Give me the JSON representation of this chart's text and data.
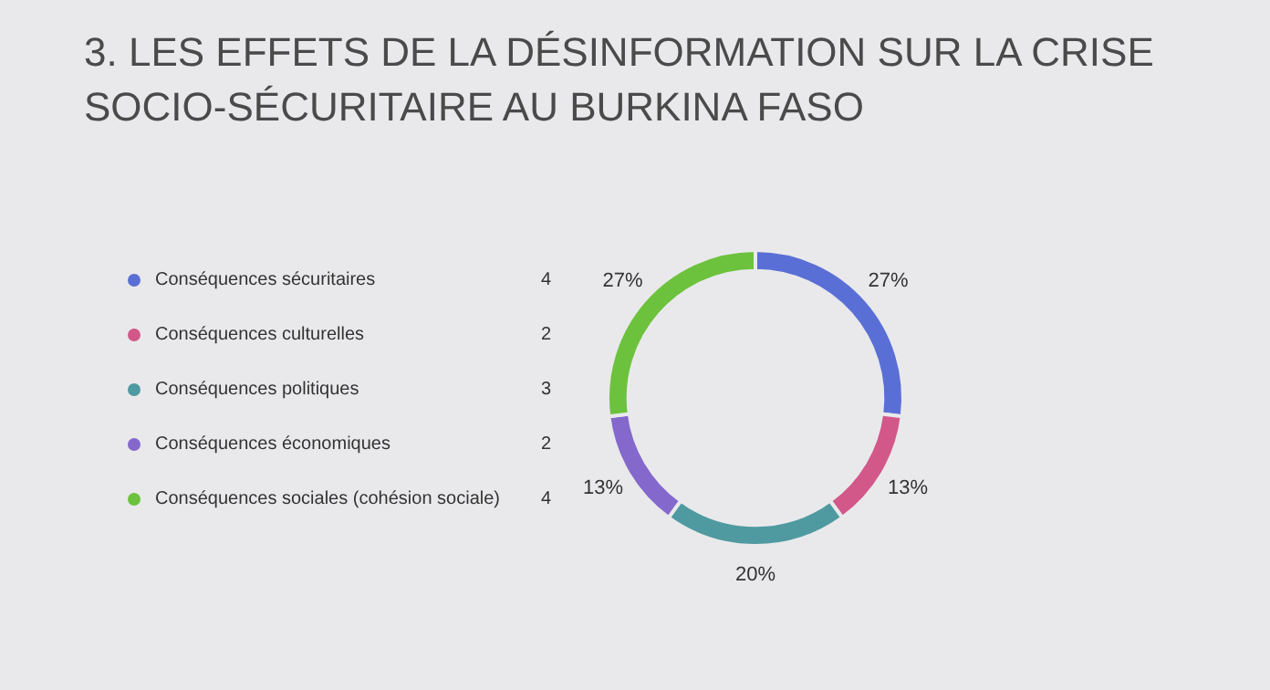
{
  "chart_data": {
    "type": "donut",
    "title": "3. LES EFFETS DE LA DÉSINFORMATION SUR LA CRISE SOCIO-SÉCURITAIRE AU BURKINA FASO",
    "categories": [
      "Conséquences sécuritaires",
      "Conséquences culturelles",
      "Conséquences politiques",
      "Conséquences économiques",
      "Conséquences sociales (cohésion sociale)"
    ],
    "values": [
      27,
      13,
      20,
      13,
      27
    ],
    "annotations": [
      "4",
      "2",
      "3",
      "2",
      "4"
    ],
    "colors": [
      "#5a6fd6",
      "#d2588a",
      "#4f9aa0",
      "#8468cc",
      "#6cc23c"
    ],
    "value_labels": [
      "27%",
      "13%",
      "20%",
      "13%",
      "27%"
    ],
    "legend": "left"
  }
}
